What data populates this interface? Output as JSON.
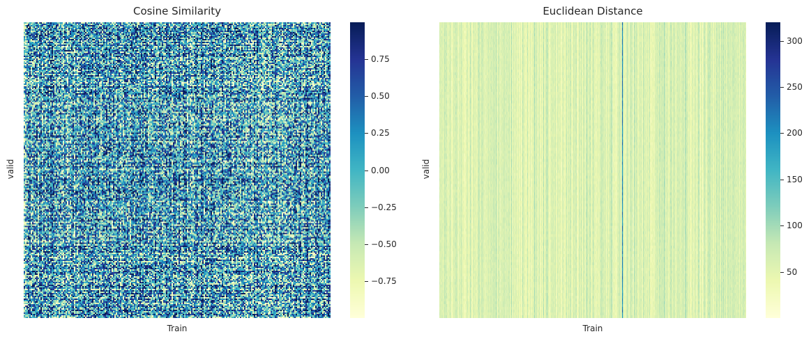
{
  "chart_data": [
    {
      "type": "heatmap",
      "title": "Cosine Similarity",
      "xlabel": "Train",
      "ylabel": "valid",
      "colormap": "YlGnBu",
      "colorbar": {
        "range": [
          -1.0,
          1.0
        ],
        "ticks": [
          0.75,
          0.5,
          0.25,
          0.0,
          -0.25,
          -0.5,
          -0.75
        ],
        "tick_labels": [
          "0.75",
          "0.50",
          "0.25",
          "0.00",
          "−0.25",
          "−0.50",
          "−0.75"
        ]
      },
      "pattern": "dense-noisy-similarity",
      "xticks_visible": false,
      "yticks_visible": false
    },
    {
      "type": "heatmap",
      "title": "Euclidean Distance",
      "xlabel": "Train",
      "ylabel": "valid",
      "colormap": "YlGnBu",
      "colorbar": {
        "range": [
          0,
          320
        ],
        "ticks": [
          300,
          250,
          200,
          150,
          100,
          50
        ],
        "tick_labels": [
          "300",
          "250",
          "200",
          "150",
          "100",
          "50"
        ]
      },
      "pattern": "column-striped-distance",
      "xticks_visible": false,
      "yticks_visible": false
    }
  ],
  "colors": {
    "colormap_stops": [
      "#ffffd9",
      "#edf8b1",
      "#c7e9b4",
      "#7fcdbb",
      "#41b6c4",
      "#1d91c0",
      "#225ea8",
      "#253494",
      "#081d58"
    ]
  }
}
